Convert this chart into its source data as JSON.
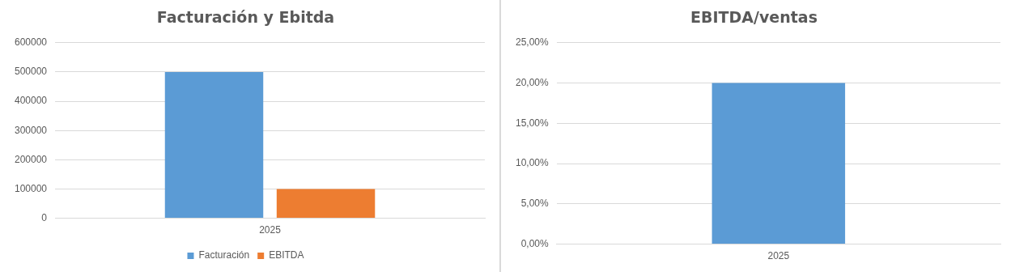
{
  "chart_data": [
    {
      "type": "bar",
      "title": "Facturación y Ebitda",
      "categories": [
        "2025"
      ],
      "series": [
        {
          "name": "Facturación",
          "color": "#5b9bd5",
          "values": [
            500000
          ]
        },
        {
          "name": "EBITDA",
          "color": "#ed7d31",
          "values": [
            100000
          ]
        }
      ],
      "ylim": [
        0,
        600000
      ],
      "yticks": [
        0,
        100000,
        200000,
        300000,
        400000,
        500000,
        600000
      ],
      "grid": "y",
      "legend": "bottom"
    },
    {
      "type": "bar",
      "title": "EBITDA/ventas",
      "categories": [
        "2025"
      ],
      "values": [
        20
      ],
      "color": "#5b9bd5",
      "ylim": [
        0,
        25
      ],
      "yticks": [
        {
          "value": 0,
          "label": "0,00%"
        },
        {
          "value": 5,
          "label": "5,00%"
        },
        {
          "value": 10,
          "label": "10,00%"
        },
        {
          "value": 15,
          "label": "15,00%"
        },
        {
          "value": 20,
          "label": "20,00%"
        },
        {
          "value": 25,
          "label": "25,00%"
        }
      ],
      "grid": "y"
    }
  ]
}
